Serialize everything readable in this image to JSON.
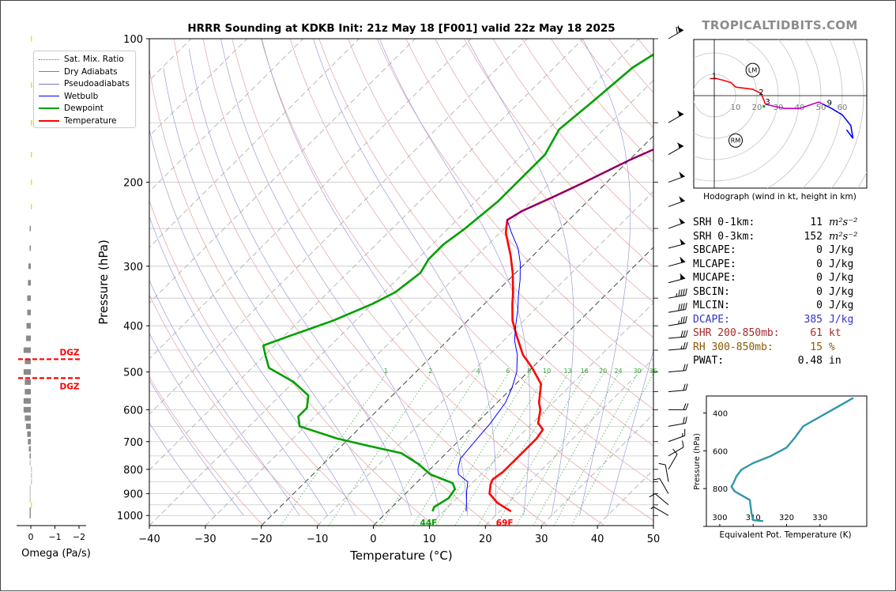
{
  "title": "HRRR Sounding at KDKB Init: 21z May 18 [F001] valid 22z May 18 2025",
  "brand": "TROPICALTIDBITS.COM",
  "skewt": {
    "xlabel": "Temperature (°C)",
    "ylabel": "Pressure (hPa)",
    "x_ticks": [
      "−40",
      "−30",
      "−20",
      "−10",
      "0",
      "10",
      "20",
      "30",
      "40",
      "50"
    ],
    "y_ticks": [
      "100",
      "200",
      "300",
      "400",
      "500",
      "600",
      "700",
      "800",
      "900",
      "1000"
    ],
    "legend": [
      {
        "label": "Sat. Mix. Ratio",
        "color": "#2ca02c",
        "style": "dotted"
      },
      {
        "label": "Dry Adiabats",
        "color": "#d45a5a",
        "style": "solid"
      },
      {
        "label": "Pseudoadiabats",
        "color": "#7a7ac8",
        "style": "solid"
      },
      {
        "label": "Wetbulb",
        "color": "#0000ff",
        "style": "solid"
      },
      {
        "label": "Dewpoint",
        "color": "#00a000",
        "style": "thick"
      },
      {
        "label": "Temperature",
        "color": "#ff0000",
        "style": "thick"
      }
    ],
    "mixing_ratio_labels": [
      "1",
      "2",
      "4",
      "6",
      "8",
      "10",
      "13",
      "16",
      "20",
      "24",
      "30",
      "36"
    ],
    "surface_td_label": "44F",
    "surface_t_label": "69F"
  },
  "omega": {
    "xlabel": "Omega (Pa/s)",
    "x_ticks": [
      "0",
      "−1",
      "−2"
    ],
    "dgz_label": "DGZ"
  },
  "hodograph": {
    "caption": "Hodograph (wind in kt, height in km)",
    "ring_labels": [
      "10",
      "20",
      "30",
      "40",
      "50",
      "60"
    ],
    "height_labels": [
      "1",
      "2",
      "3",
      "9"
    ],
    "lm_label": "LM",
    "rm_label": "RM"
  },
  "indices": [
    {
      "name": "SRH 0-1km:",
      "value": "11",
      "unit": "m²s⁻²",
      "color": "#000000"
    },
    {
      "name": "SRH 0-3km:",
      "value": "152",
      "unit": "m²s⁻²",
      "color": "#000000"
    },
    {
      "name": "SBCAPE:",
      "value": "0",
      "unit": "J/kg",
      "color": "#000000"
    },
    {
      "name": "MLCAPE:",
      "value": "0",
      "unit": "J/kg",
      "color": "#000000"
    },
    {
      "name": "MUCAPE:",
      "value": "0",
      "unit": "J/kg",
      "color": "#000000"
    },
    {
      "name": "SBCIN:",
      "value": "0",
      "unit": "J/kg",
      "color": "#000000"
    },
    {
      "name": "MLCIN:",
      "value": "0",
      "unit": "J/kg",
      "color": "#000000"
    },
    {
      "name": "DCAPE:",
      "value": "385",
      "unit": "J/kg",
      "color": "#3333cc"
    },
    {
      "name": "SHR 200-850mb:",
      "value": "61",
      "unit": "kt",
      "color": "#a52a2a"
    },
    {
      "name": "RH 300-850mb:",
      "value": "15",
      "unit": "%",
      "color": "#8b5a00"
    },
    {
      "name": "PWAT:",
      "value": "0.48",
      "unit": "in",
      "color": "#000000"
    }
  ],
  "theta_e": {
    "xlabel": "Equivalent Pot. Temperature (K)",
    "ylabel": "Pressure (hPa)",
    "x_ticks": [
      "300",
      "310",
      "320",
      "330"
    ],
    "y_ticks": [
      "400",
      "600",
      "800"
    ]
  },
  "chart_data": [
    {
      "type": "line",
      "name": "skew-t",
      "xlim": [
        -40,
        50
      ],
      "ylim": [
        1050,
        100
      ],
      "log_pressure": true,
      "skew_per_decade": 67,
      "series": [
        {
          "name": "Temperature",
          "color": "#ff0000",
          "points": [
            [
              22,
              980
            ],
            [
              20,
              960
            ],
            [
              18,
              940
            ],
            [
              15,
              900
            ],
            [
              13.5,
              860
            ],
            [
              13,
              840
            ],
            [
              13.5,
              810
            ],
            [
              13.5,
              770
            ],
            [
              13.5,
              720
            ],
            [
              13.5,
              690
            ],
            [
              13,
              660
            ],
            [
              11,
              640
            ],
            [
              9,
              600
            ],
            [
              7.5,
              580
            ],
            [
              4.5,
              530
            ],
            [
              0,
              490
            ],
            [
              -4,
              460
            ],
            [
              -8.5,
              420
            ],
            [
              -12,
              390
            ],
            [
              -15,
              360
            ],
            [
              -17,
              340
            ],
            [
              -20.5,
              310
            ],
            [
              -24,
              285
            ],
            [
              -29,
              255
            ],
            [
              -31,
              240
            ],
            [
              -30,
              230
            ],
            [
              -27,
              215
            ],
            [
              -24,
              200
            ],
            [
              -20,
              180
            ],
            [
              -16,
              165
            ],
            [
              -12,
              150
            ],
            [
              -8,
              140
            ],
            [
              -3,
              125
            ],
            [
              1,
              115
            ],
            [
              5,
              100
            ]
          ]
        },
        {
          "name": "Dewpoint",
          "color": "#00a000",
          "points": [
            [
              8,
              980
            ],
            [
              7.5,
              960
            ],
            [
              8.5,
              920
            ],
            [
              8,
              880
            ],
            [
              6.5,
              855
            ],
            [
              1,
              820
            ],
            [
              -3,
              780
            ],
            [
              -8,
              740
            ],
            [
              -15,
              715
            ],
            [
              -22,
              690
            ],
            [
              -31,
              650
            ],
            [
              -33,
              620
            ],
            [
              -33,
              595
            ],
            [
              -35,
              560
            ],
            [
              -40,
              525
            ],
            [
              -47,
              490
            ],
            [
              -50,
              460
            ],
            [
              -52,
              440
            ],
            [
              -49,
              420
            ],
            [
              -44,
              390
            ],
            [
              -40,
              360
            ],
            [
              -38,
              340
            ],
            [
              -37,
              310
            ],
            [
              -38,
              290
            ],
            [
              -38,
              270
            ],
            [
              -37,
              250
            ],
            [
              -36,
              220
            ],
            [
              -36,
              200
            ],
            [
              -36,
              175
            ],
            [
              -38,
              155
            ],
            [
              -37,
              135
            ],
            [
              -36,
              115
            ],
            [
              -33,
              100
            ]
          ]
        },
        {
          "name": "Wetbulb",
          "color": "#0000ff",
          "points": [
            [
              14,
              980
            ],
            [
              12.5,
              940
            ],
            [
              10.5,
              890
            ],
            [
              9,
              850
            ],
            [
              6,
              820
            ],
            [
              5,
              800
            ],
            [
              3.5,
              760
            ],
            [
              3,
              700
            ],
            [
              2.5,
              640
            ],
            [
              1.5,
              580
            ],
            [
              0,
              540
            ],
            [
              -2,
              500
            ],
            [
              -5,
              460
            ],
            [
              -8,
              430
            ],
            [
              -10.5,
              400
            ],
            [
              -13,
              370
            ],
            [
              -15.5,
              345
            ],
            [
              -18,
              320
            ],
            [
              -21,
              295
            ],
            [
              -24,
              275
            ],
            [
              -28,
              255
            ],
            [
              -31,
              240
            ],
            [
              -30,
              230
            ],
            [
              -27,
              215
            ],
            [
              -24,
              200
            ],
            [
              -20,
              180
            ],
            [
              -16,
              165
            ],
            [
              -12,
              150
            ],
            [
              -8,
              140
            ],
            [
              -3.5,
              125
            ],
            [
              0,
              115
            ],
            [
              3,
              100
            ]
          ]
        }
      ]
    },
    {
      "type": "bar",
      "name": "omega",
      "xlim": [
        0.1,
        -2.1
      ],
      "levels_hpa": [
        1000,
        975,
        950,
        925,
        900,
        875,
        850,
        825,
        800,
        775,
        750,
        725,
        700,
        675,
        650,
        625,
        600,
        575,
        550,
        525,
        500,
        475,
        450,
        425,
        400,
        375,
        350,
        325,
        300,
        275,
        250,
        225,
        200,
        175,
        150,
        125,
        100
      ],
      "values": [
        0,
        0,
        -0.02,
        0.01,
        0.02,
        0,
        -0.02,
        -0.03,
        -0.03,
        0.05,
        0.05,
        0.08,
        0.12,
        0.15,
        0.2,
        0.25,
        0.3,
        0.3,
        0.25,
        0.25,
        0.3,
        0.25,
        0.3,
        0.2,
        0.18,
        0.15,
        0.15,
        0.12,
        0.1,
        0,
        0,
        -0.04,
        -0.02,
        -0.04,
        -0.06,
        -0.03,
        -0.02
      ],
      "dgz_hpa": [
        470,
        515
      ]
    },
    {
      "type": "line",
      "name": "hodograph",
      "units": "kt",
      "series": [
        {
          "name": "0-1 km",
          "color": "#ff0000",
          "u": [
            -2,
            1,
            5,
            8,
            10
          ],
          "v": [
            8,
            8,
            7,
            6,
            4
          ]
        },
        {
          "name": "1-3 km",
          "color": "#ff0000",
          "u": [
            10,
            18,
            22,
            24
          ],
          "v": [
            4,
            3,
            1,
            -4
          ]
        },
        {
          "name": "3-9 km",
          "color": "#c000c0",
          "u": [
            24,
            28,
            33,
            40,
            46,
            49,
            51
          ],
          "v": [
            -4,
            -5,
            -6,
            -6,
            -4,
            -3,
            -4
          ]
        },
        {
          "name": "9+ km",
          "color": "#0000ff",
          "u": [
            51,
            55,
            60,
            64,
            65,
            62
          ],
          "v": [
            -4,
            -6,
            -9,
            -14,
            -20,
            -16
          ]
        }
      ],
      "storm_motion": {
        "LM": [
          18,
          12
        ],
        "RM": [
          10,
          -21
        ]
      },
      "surface_point": [
        24,
        -5
      ]
    },
    {
      "type": "line",
      "name": "theta-e",
      "xlim": [
        296,
        344
      ],
      "ylim": [
        1000,
        310
      ],
      "points": [
        [
          313,
          972
        ],
        [
          310,
          967
        ],
        [
          309.5,
          930
        ],
        [
          309,
          860
        ],
        [
          304.5,
          815
        ],
        [
          303.5,
          790
        ],
        [
          304,
          775
        ],
        [
          305,
          735
        ],
        [
          306.5,
          700
        ],
        [
          310,
          665
        ],
        [
          315,
          630
        ],
        [
          320,
          583
        ],
        [
          322.5,
          530
        ],
        [
          325,
          470
        ],
        [
          332,
          400
        ],
        [
          340,
          320
        ]
      ]
    }
  ]
}
